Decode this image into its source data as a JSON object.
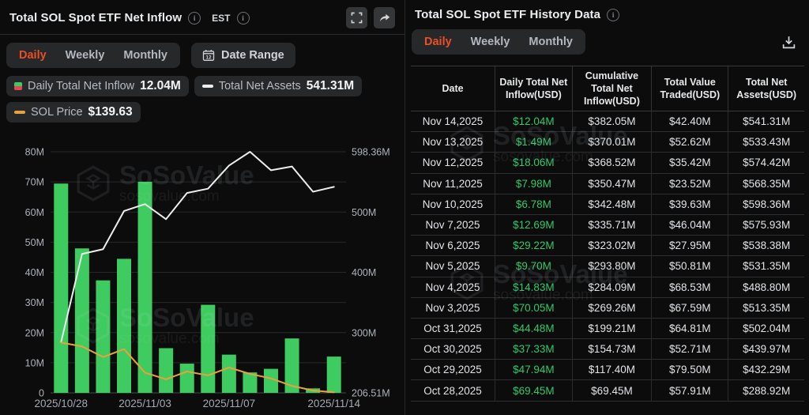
{
  "left_panel": {
    "title": "Total SOL Spot ETF Net Inflow",
    "timezone_label": "EST",
    "tabs": {
      "items": [
        "Daily",
        "Weekly",
        "Monthly"
      ],
      "active": "Daily"
    },
    "date_range_button": "Date Range",
    "legend": {
      "inflow": {
        "label": "Daily Total Net Inflow",
        "value": "12.04M"
      },
      "assets": {
        "label": "Total Net Assets",
        "value": "541.31M"
      },
      "price": {
        "label": "SOL Price",
        "value": "$139.63"
      }
    }
  },
  "chart_data": {
    "type": "bar+line",
    "unit": "USD millions",
    "categories": [
      "2025/10/28",
      "2025/10/29",
      "2025/10/30",
      "2025/10/31",
      "2025/11/03",
      "2025/11/04",
      "2025/11/05",
      "2025/11/06",
      "2025/11/07",
      "2025/11/10",
      "2025/11/11",
      "2025/11/12",
      "2025/11/13",
      "2025/11/14"
    ],
    "x_tick_labels": [
      "2025/10/28",
      "2025/11/03",
      "2025/11/07",
      "2025/11/14"
    ],
    "x_tick_indices": [
      0,
      4,
      8,
      13
    ],
    "series": [
      {
        "name": "Daily Total Net Inflow",
        "type": "bar",
        "axis": "left",
        "color": "#3ecb5f",
        "values": [
          69.45,
          47.94,
          37.33,
          44.48,
          70.05,
          14.83,
          9.7,
          29.22,
          12.69,
          6.78,
          7.98,
          18.06,
          1.49,
          12.04
        ]
      },
      {
        "name": "Total Net Assets",
        "type": "line",
        "axis": "right",
        "color": "#ededee",
        "values": [
          288.92,
          432.29,
          439.97,
          502.04,
          513.35,
          488.8,
          531.35,
          538.38,
          575.93,
          598.36,
          568.35,
          574.42,
          533.43,
          541.31
        ]
      },
      {
        "name": "SOL Price",
        "type": "line",
        "axis": "hidden",
        "color": "#e9a23b",
        "values_left_axis_equiv": [
          16.7,
          15.4,
          11.9,
          14.5,
          6.7,
          4.5,
          7.1,
          5.8,
          8.4,
          6.3,
          4.8,
          2.3,
          0.8,
          0.2
        ]
      }
    ],
    "left_axis": {
      "ticks_top_down": [
        "80M",
        "70M",
        "60M",
        "50M",
        "40M",
        "30M",
        "20M",
        "10M",
        "0"
      ],
      "min": 0,
      "max": 80
    },
    "right_axis": {
      "ticks_top_down": [
        "598.36M",
        "500M",
        "400M",
        "300M",
        "206.51M"
      ],
      "min": 206.51,
      "max": 598.36
    },
    "grid": true,
    "legend_position": "top-left"
  },
  "right_panel": {
    "title": "Total SOL Spot ETF History Data",
    "tabs": {
      "items": [
        "Daily",
        "Weekly",
        "Monthly"
      ],
      "active": "Daily"
    },
    "table": {
      "columns": [
        "Date",
        "Daily Total Net Inflow(USD)",
        "Cumulative Total Net Inflow(USD)",
        "Total Value Traded(USD)",
        "Total Net Assets(USD)"
      ],
      "rows": [
        [
          "Nov 14,2025",
          "$12.04M",
          "$382.05M",
          "$42.40M",
          "$541.31M"
        ],
        [
          "Nov 13,2025",
          "$1.49M",
          "$370.01M",
          "$52.62M",
          "$533.43M"
        ],
        [
          "Nov 12,2025",
          "$18.06M",
          "$368.52M",
          "$35.42M",
          "$574.42M"
        ],
        [
          "Nov 11,2025",
          "$7.98M",
          "$350.47M",
          "$23.52M",
          "$568.35M"
        ],
        [
          "Nov 10,2025",
          "$6.78M",
          "$342.48M",
          "$39.63M",
          "$598.36M"
        ],
        [
          "Nov 7,2025",
          "$12.69M",
          "$335.71M",
          "$46.04M",
          "$575.93M"
        ],
        [
          "Nov 6,2025",
          "$29.22M",
          "$323.02M",
          "$27.95M",
          "$538.38M"
        ],
        [
          "Nov 5,2025",
          "$9.70M",
          "$293.80M",
          "$50.81M",
          "$531.35M"
        ],
        [
          "Nov 4,2025",
          "$14.83M",
          "$284.09M",
          "$68.53M",
          "$488.80M"
        ],
        [
          "Nov 3,2025",
          "$70.05M",
          "$269.26M",
          "$67.59M",
          "$513.35M"
        ],
        [
          "Oct 31,2025",
          "$44.48M",
          "$199.21M",
          "$64.81M",
          "$502.04M"
        ],
        [
          "Oct 30,2025",
          "$37.33M",
          "$154.73M",
          "$52.71M",
          "$439.97M"
        ],
        [
          "Oct 29,2025",
          "$47.94M",
          "$117.40M",
          "$79.50M",
          "$432.29M"
        ],
        [
          "Oct 28,2025",
          "$69.45M",
          "$69.45M",
          "$57.91M",
          "$288.92M"
        ]
      ]
    }
  },
  "watermark": {
    "brand": "SoSoValue",
    "domain": "sosovalue.com"
  },
  "colors": {
    "accent": "#ea4f26",
    "bar_green": "#3ecb5f",
    "value_green": "#2fc96a",
    "line_white": "#ededee",
    "line_orange": "#e9a23b",
    "loss_red": "#e5484d"
  }
}
